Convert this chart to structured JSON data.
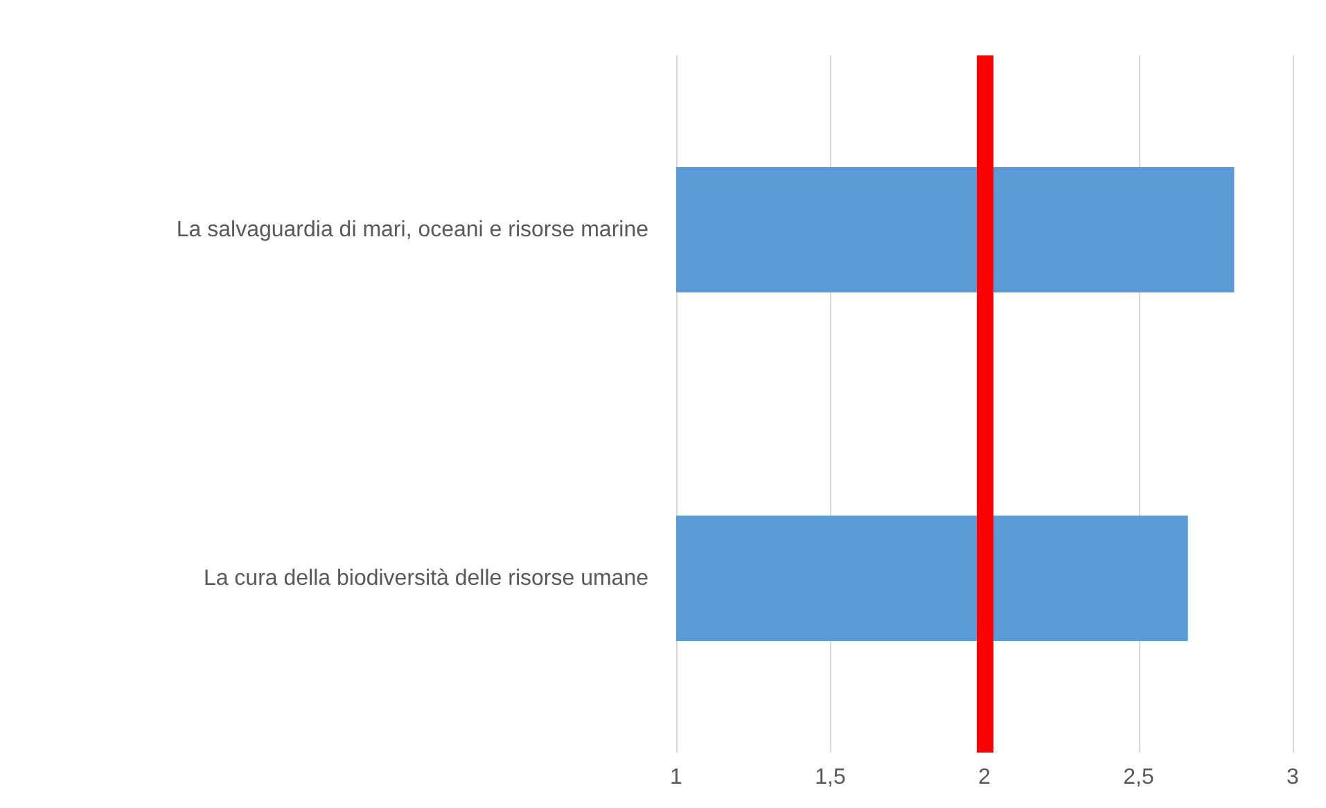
{
  "chart_data": {
    "type": "bar",
    "orientation": "horizontal",
    "categories": [
      "La salvaguardia di mari, oceani e risorse marine",
      "La cura della biodiversità delle risorse umane"
    ],
    "values": [
      2.81,
      2.66
    ],
    "color": "#5b9bd5",
    "xlim": [
      1,
      3
    ],
    "xticks": [
      1,
      {
        "value": 1.5,
        "label": "1,5"
      },
      2,
      {
        "value": 2.5,
        "label": "2,5"
      },
      3
    ],
    "grid": "x",
    "ref_lines": [
      {
        "axis": "x",
        "value": 2,
        "label": null,
        "color": "#ff0000"
      }
    ]
  }
}
